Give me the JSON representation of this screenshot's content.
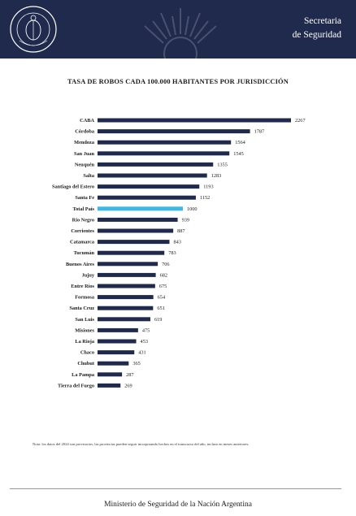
{
  "header": {
    "org_line1": "Secretaria",
    "org_line2": "de Seguridad",
    "background_color": "#1f2a4d",
    "logo_icon": "ministry-seal-icon",
    "emblem_icon": "sun-of-may-icon"
  },
  "chart_data": {
    "type": "bar",
    "orientation": "horizontal",
    "title": "TASA DE ROBOS CADA 100.000 HABITANTES POR JURISDICCIÓN",
    "categories": [
      "CABA",
      "Córdoba",
      "Mendoza",
      "San Juan",
      "Neuquén",
      "Salta",
      "Santiago del Estero",
      "Santa Fe",
      "Total País",
      "Río Negro",
      "Corrientes",
      "Catamarca",
      "Tucumán",
      "Buenos Aires",
      "Jujuy",
      "Entre Ríos",
      "Formosa",
      "Santa Cruz",
      "San Luis",
      "Misiones",
      "La Rioja",
      "Chaco",
      "Chubut",
      "La Pampa",
      "Tierra del Fuego"
    ],
    "values": [
      2267,
      1787,
      1564,
      1545,
      1355,
      1283,
      1193,
      1152,
      1000,
      939,
      887,
      843,
      783,
      706,
      682,
      675,
      654,
      651,
      619,
      475,
      453,
      431,
      365,
      287,
      269
    ],
    "highlight_category": "Total País",
    "bar_color": "#1f2a4d",
    "highlight_color": "#3cb7e6",
    "xlim": [
      0,
      2267
    ],
    "grid": false,
    "legend": "none"
  },
  "note": "Nota: los datos del 2024 son provisorios, las provincias pueden seguir incorporando hechos en el transcurso del año, incluso en meses anteriores.",
  "footer": "Ministerio de Seguridad de la Nación Argentina"
}
